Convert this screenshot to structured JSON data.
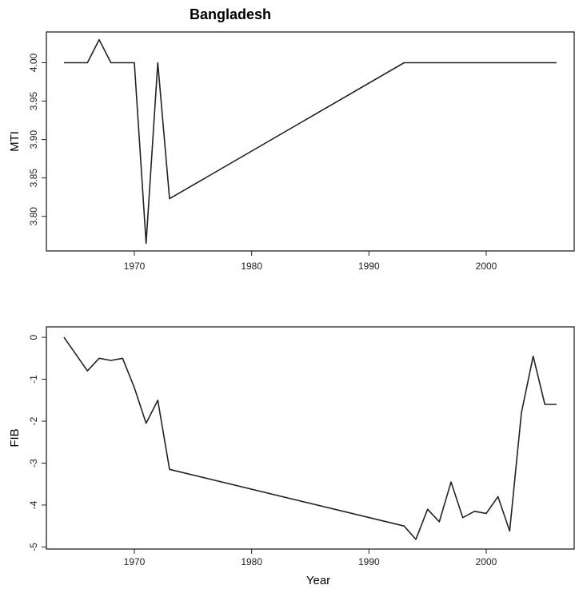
{
  "chart_data": [
    {
      "type": "line",
      "title": "Bangladesh",
      "xlabel": "",
      "ylabel": "MTI",
      "xlim": [
        1962.5,
        2007.5
      ],
      "ylim": [
        3.755,
        4.04
      ],
      "xticks": [
        1970,
        1980,
        1990,
        2000
      ],
      "xtick_labels": [
        "1970",
        "1980",
        "1990",
        "2000"
      ],
      "yticks": [
        3.8,
        3.85,
        3.9,
        3.95,
        4.0
      ],
      "ytick_labels": [
        "3.80",
        "3.85",
        "3.90",
        "3.95",
        "4.00"
      ],
      "grid": false,
      "series": [
        {
          "x": [
            1964,
            1966,
            1967,
            1968,
            1969,
            1970,
            1971,
            1972,
            1973,
            1993,
            2006
          ],
          "y": [
            4.0,
            4.0,
            4.03,
            4.0,
            4.0,
            4.0,
            3.765,
            4.0,
            3.823,
            4.0,
            4.0
          ]
        }
      ]
    },
    {
      "type": "line",
      "title": "",
      "xlabel": "Year",
      "ylabel": "FIB",
      "xlim": [
        1962.5,
        2007.5
      ],
      "ylim": [
        -5.05,
        0.25
      ],
      "xticks": [
        1970,
        1980,
        1990,
        2000
      ],
      "xtick_labels": [
        "1970",
        "1980",
        "1990",
        "2000"
      ],
      "yticks": [
        -5,
        -4,
        -3,
        -2,
        -1,
        0
      ],
      "ytick_labels": [
        "-5",
        "-4",
        "-3",
        "-2",
        "-1",
        "0"
      ],
      "grid": false,
      "series": [
        {
          "x": [
            1964,
            1965,
            1966,
            1967,
            1968,
            1969,
            1970,
            1971,
            1972,
            1973,
            1993,
            1994,
            1995,
            1996,
            1997,
            1998,
            1999,
            2000,
            2001,
            2002,
            2003,
            2004,
            2005,
            2006
          ],
          "y": [
            0.0,
            -0.4,
            -0.8,
            -0.5,
            -0.55,
            -0.5,
            -1.2,
            -2.05,
            -1.5,
            -3.15,
            -4.5,
            -4.82,
            -4.1,
            -4.4,
            -3.45,
            -4.3,
            -4.15,
            -4.2,
            -3.8,
            -4.62,
            -1.8,
            -0.45,
            -1.6,
            -1.6
          ]
        }
      ]
    }
  ]
}
